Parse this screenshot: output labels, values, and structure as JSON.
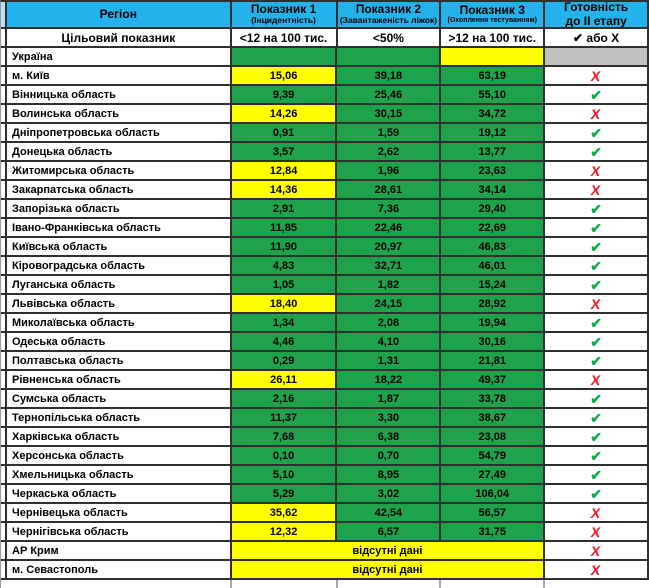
{
  "header": {
    "region": "Регіон",
    "col1_title": "Показник 1",
    "col1_sub": "(Інцидентність)",
    "col2_title": "Показник 2",
    "col2_sub": "(Завантаженість ліжок)",
    "col3_title": "Показник 3",
    "col3_sub": "(Охоплення тестуванням)",
    "ready_line1": "Готовність",
    "ready_line2": "до II етапу"
  },
  "target_row": {
    "label": "Цільовий показник",
    "col1": "<12 на 100 тис.",
    "col2": "<50%",
    "col3": ">12 на 100 тис.",
    "ready": "✔ або Х"
  },
  "icons": {
    "check": "✔",
    "x": "Х"
  },
  "no_data_label": "відсутні дані",
  "colors": {
    "header_blue": "#24b2ea",
    "cell_green": "#1fa24c",
    "cell_yellow": "#ffff00",
    "cell_gray": "#c1c1c1",
    "check_green": "#0fac4f",
    "x_red": "#ec1c24"
  },
  "rows": [
    {
      "region": "Україна",
      "v1": "",
      "c1": "green",
      "v2": "",
      "c2": "green",
      "v3": "",
      "c3": "yellow",
      "ready": "none",
      "ready_bg": "gray",
      "merged": false
    },
    {
      "region": "м. Київ",
      "v1": "15,06",
      "c1": "yellow",
      "v2": "39,18",
      "c2": "green",
      "v3": "63,19",
      "c3": "green",
      "ready": "x",
      "ready_bg": "white",
      "merged": false
    },
    {
      "region": "Вінницька область",
      "v1": "9,39",
      "c1": "green",
      "v2": "25,46",
      "c2": "green",
      "v3": "55,10",
      "c3": "green",
      "ready": "check",
      "ready_bg": "white",
      "merged": false
    },
    {
      "region": "Волинська область",
      "v1": "14,26",
      "c1": "yellow",
      "v2": "30,15",
      "c2": "green",
      "v3": "34,72",
      "c3": "green",
      "ready": "x",
      "ready_bg": "white",
      "merged": false
    },
    {
      "region": "Дніпропетровська область",
      "v1": "0,91",
      "c1": "green",
      "v2": "1,59",
      "c2": "green",
      "v3": "19,12",
      "c3": "green",
      "ready": "check",
      "ready_bg": "white",
      "merged": false
    },
    {
      "region": "Донецька область",
      "v1": "3,57",
      "c1": "green",
      "v2": "2,62",
      "c2": "green",
      "v3": "13,77",
      "c3": "green",
      "ready": "check",
      "ready_bg": "white",
      "merged": false
    },
    {
      "region": "Житомирська область",
      "v1": "12,84",
      "c1": "yellow",
      "v2": "1,96",
      "c2": "green",
      "v3": "23,63",
      "c3": "green",
      "ready": "x",
      "ready_bg": "white",
      "merged": false
    },
    {
      "region": "Закарпатська область",
      "v1": "14,36",
      "c1": "yellow",
      "v2": "28,61",
      "c2": "green",
      "v3": "34,14",
      "c3": "green",
      "ready": "x",
      "ready_bg": "white",
      "merged": false
    },
    {
      "region": "Запорізька область",
      "v1": "2,91",
      "c1": "green",
      "v2": "7,36",
      "c2": "green",
      "v3": "29,40",
      "c3": "green",
      "ready": "check",
      "ready_bg": "white",
      "merged": false
    },
    {
      "region": "Івано-Франківська область",
      "v1": "11,85",
      "c1": "green",
      "v2": "22,46",
      "c2": "green",
      "v3": "22,69",
      "c3": "green",
      "ready": "check",
      "ready_bg": "white",
      "merged": false
    },
    {
      "region": "Київська область",
      "v1": "11,90",
      "c1": "green",
      "v2": "20,97",
      "c2": "green",
      "v3": "46,83",
      "c3": "green",
      "ready": "check",
      "ready_bg": "white",
      "merged": false
    },
    {
      "region": "Кіровоградська область",
      "v1": "4,83",
      "c1": "green",
      "v2": "32,71",
      "c2": "green",
      "v3": "46,01",
      "c3": "green",
      "ready": "check",
      "ready_bg": "white",
      "merged": false
    },
    {
      "region": "Луганська область",
      "v1": "1,05",
      "c1": "green",
      "v2": "1,82",
      "c2": "green",
      "v3": "15,24",
      "c3": "green",
      "ready": "check",
      "ready_bg": "white",
      "merged": false
    },
    {
      "region": "Львівська область",
      "v1": "18,40",
      "c1": "yellow",
      "v2": "24,15",
      "c2": "green",
      "v3": "28,92",
      "c3": "green",
      "ready": "x",
      "ready_bg": "white",
      "merged": false
    },
    {
      "region": "Миколаївська область",
      "v1": "1,34",
      "c1": "green",
      "v2": "2,08",
      "c2": "green",
      "v3": "19,94",
      "c3": "green",
      "ready": "check",
      "ready_bg": "white",
      "merged": false
    },
    {
      "region": "Одеська область",
      "v1": "4,46",
      "c1": "green",
      "v2": "4,10",
      "c2": "green",
      "v3": "30,16",
      "c3": "green",
      "ready": "check",
      "ready_bg": "white",
      "merged": false
    },
    {
      "region": "Полтавська область",
      "v1": "0,29",
      "c1": "green",
      "v2": "1,31",
      "c2": "green",
      "v3": "21,81",
      "c3": "green",
      "ready": "check",
      "ready_bg": "white",
      "merged": false
    },
    {
      "region": "Рівненська область",
      "v1": "26,11",
      "c1": "yellow",
      "v2": "18,22",
      "c2": "green",
      "v3": "49,37",
      "c3": "green",
      "ready": "x",
      "ready_bg": "white",
      "merged": false
    },
    {
      "region": "Сумська область",
      "v1": "2,16",
      "c1": "green",
      "v2": "1,87",
      "c2": "green",
      "v3": "33,78",
      "c3": "green",
      "ready": "check",
      "ready_bg": "white",
      "merged": false
    },
    {
      "region": "Тернопільська область",
      "v1": "11,37",
      "c1": "green",
      "v2": "3,30",
      "c2": "green",
      "v3": "38,67",
      "c3": "green",
      "ready": "check",
      "ready_bg": "white",
      "merged": false
    },
    {
      "region": "Харківська область",
      "v1": "7,68",
      "c1": "green",
      "v2": "6,38",
      "c2": "green",
      "v3": "23,08",
      "c3": "green",
      "ready": "check",
      "ready_bg": "white",
      "merged": false
    },
    {
      "region": "Херсонська область",
      "v1": "0,10",
      "c1": "green",
      "v2": "0,70",
      "c2": "green",
      "v3": "54,79",
      "c3": "green",
      "ready": "check",
      "ready_bg": "white",
      "merged": false
    },
    {
      "region": "Хмельницька область",
      "v1": "5,10",
      "c1": "green",
      "v2": "8,95",
      "c2": "green",
      "v3": "27,49",
      "c3": "green",
      "ready": "check",
      "ready_bg": "white",
      "merged": false
    },
    {
      "region": "Черкаська область",
      "v1": "5,29",
      "c1": "green",
      "v2": "3,02",
      "c2": "green",
      "v3": "106,04",
      "c3": "green",
      "ready": "check",
      "ready_bg": "white",
      "merged": false
    },
    {
      "region": "Чернівецька область",
      "v1": "35,62",
      "c1": "yellow",
      "v2": "42,54",
      "c2": "green",
      "v3": "56,57",
      "c3": "green",
      "ready": "x",
      "ready_bg": "white",
      "merged": false
    },
    {
      "region": "Чернігівська область",
      "v1": "12,32",
      "c1": "yellow",
      "v2": "6,57",
      "c2": "green",
      "v3": "31,75",
      "c3": "green",
      "ready": "x",
      "ready_bg": "white",
      "merged": false
    },
    {
      "region": "АР Крим",
      "merged": true,
      "ready": "x",
      "ready_bg": "white"
    },
    {
      "region": "м. Севастополь",
      "merged": true,
      "ready": "x",
      "ready_bg": "white"
    }
  ]
}
